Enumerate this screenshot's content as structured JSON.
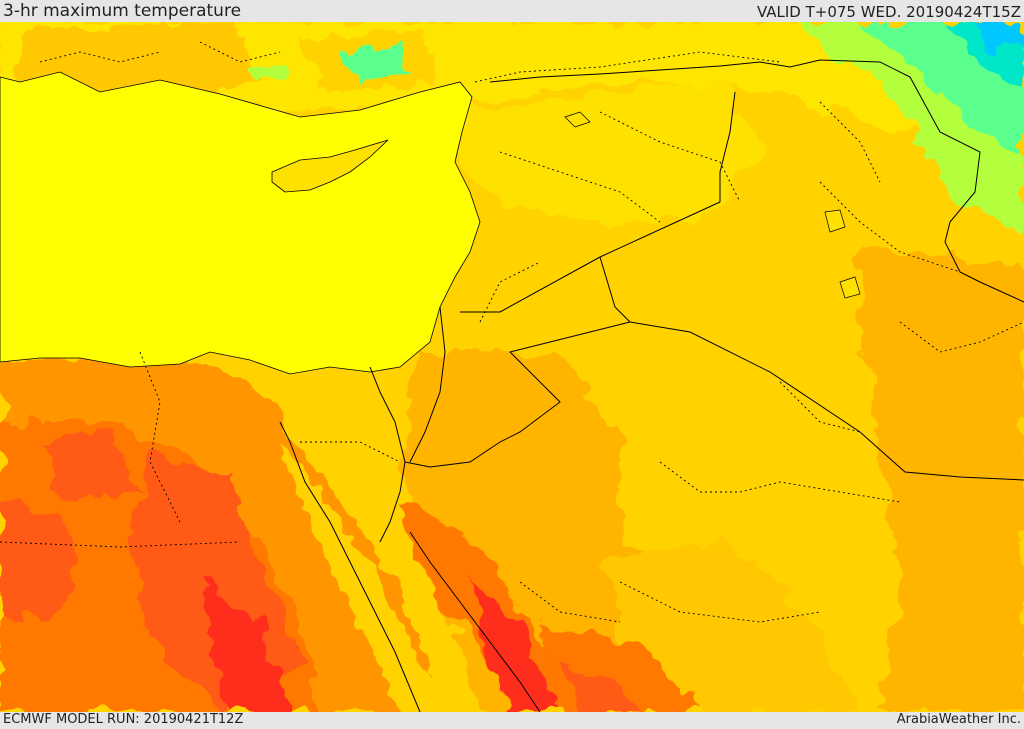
{
  "header": {
    "title": "3-hr maximum temperature",
    "valid": "VALID T+075 WED. 20190424T15Z"
  },
  "footer": {
    "model_run": "ECMWF MODEL RUN: 20190421T12Z",
    "credit": "ArabiaWeather Inc."
  },
  "map": {
    "field": "3-hr maximum temperature",
    "color_scale": [
      "#00c8ff",
      "#00e6c8",
      "#5aff8c",
      "#b4ff3c",
      "#ffff00",
      "#ffe100",
      "#ffc800",
      "#ffa500",
      "#ff8200",
      "#ff5a14",
      "#ff2d1e"
    ],
    "sea_color": "#ffff00",
    "border_color": "#000000"
  }
}
